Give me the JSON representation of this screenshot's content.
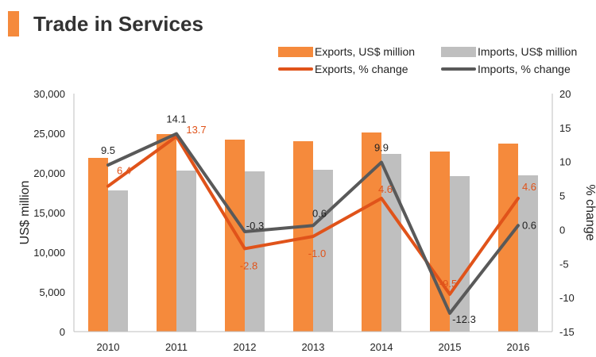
{
  "title": "Trade in Services",
  "colors": {
    "exports_bar": "#F58A3C",
    "imports_bar": "#BFBFBF",
    "exports_line": "#E0531A",
    "imports_line": "#595959",
    "accent": "#F58A3C",
    "exports_label": "#E0531A",
    "imports_label": "#222222"
  },
  "legend": {
    "exports_bar": "Exports, US$ million",
    "imports_bar": "Imports, US$ million",
    "exports_line": "Exports, % change",
    "imports_line": "Imports, % change"
  },
  "chart_data": {
    "type": "bar+line",
    "title": "Trade in Services",
    "categories": [
      "2010",
      "2011",
      "2012",
      "2013",
      "2014",
      "2015",
      "2016"
    ],
    "bar_series": [
      {
        "name": "Exports, US$ million",
        "values": [
          21900,
          24900,
          24200,
          24000,
          25100,
          22700,
          23700
        ]
      },
      {
        "name": "Imports, US$ million",
        "values": [
          17800,
          20300,
          20200,
          20400,
          22400,
          19600,
          19700
        ]
      }
    ],
    "line_series": [
      {
        "name": "Exports, % change",
        "values": [
          6.4,
          13.7,
          -2.8,
          -1.0,
          4.6,
          -9.5,
          4.6
        ],
        "labels": [
          "6.4",
          "13.7",
          "-2.8",
          "-1.0",
          "4.6",
          "-9.5",
          "4.6"
        ]
      },
      {
        "name": "Imports, % change",
        "values": [
          9.5,
          14.1,
          -0.3,
          0.6,
          9.9,
          -12.3,
          0.6
        ],
        "labels": [
          "9.5",
          "14.1",
          "-0.3",
          "0.6",
          "9.9",
          "-12.3",
          "0.6"
        ]
      }
    ],
    "ylabel": "US$ million",
    "y2label": "% change",
    "ylim": [
      0,
      30000
    ],
    "y2lim": [
      -15,
      20
    ],
    "yticks": [
      "0",
      "5,000",
      "10,000",
      "15,000",
      "20,000",
      "25,000",
      "30,000"
    ],
    "y2ticks": [
      "-15",
      "-10",
      "-5",
      "0",
      "5",
      "10",
      "15",
      "20"
    ],
    "grid": false,
    "legend_position": "top"
  }
}
